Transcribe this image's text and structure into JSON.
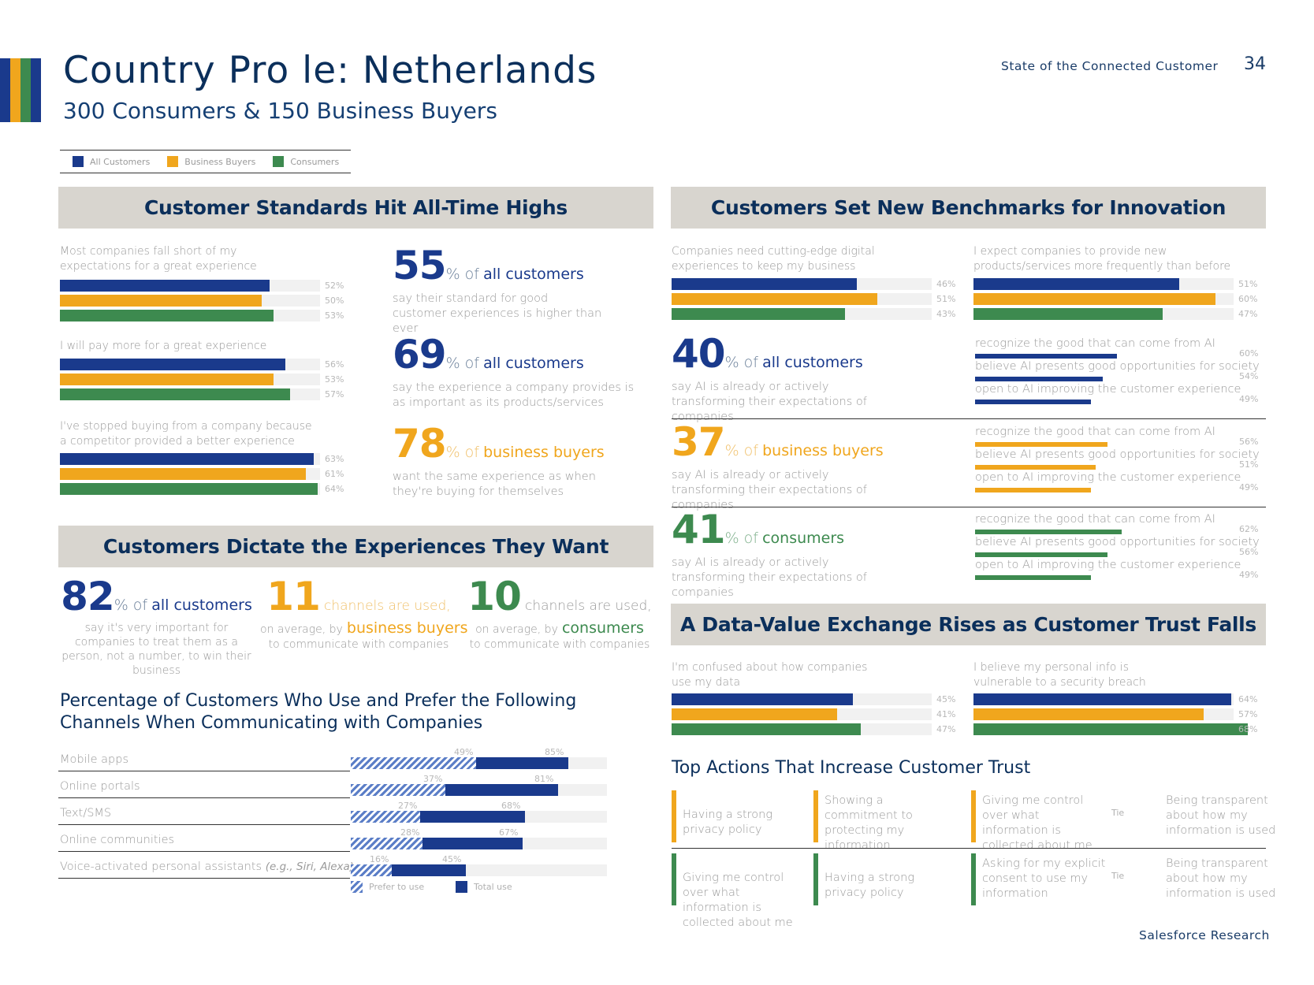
{
  "colors": {
    "all": "#1a3a8c",
    "business": "#f0a61d",
    "consumers": "#3d8a4f",
    "track": "#f1f1f1",
    "header_bg": "#d8d5cf"
  },
  "header": {
    "title": "Country Pro  le: Netherlands",
    "subtitle": "300 Consumers & 150 Business Buyers",
    "report_name": "State of the Connected Customer",
    "page_number": "34"
  },
  "legend": {
    "all": "All Customers",
    "business": "Business Buyers",
    "consumers": "Consumers"
  },
  "standards": {
    "title": "Customer Standards Hit All-Time Highs",
    "questions": [
      {
        "label": "Most companies fall short of my expectations for a great experience",
        "values": [
          52,
          50,
          53
        ],
        "labels": [
          "52%",
          "50%",
          "53%"
        ]
      },
      {
        "label": "I will pay more for a great experience",
        "values": [
          56,
          53,
          57
        ],
        "labels": [
          "56%",
          "53%",
          "57%"
        ]
      },
      {
        "label": "I've stopped buying from a company because a competitor provided a better experience",
        "values": [
          63,
          61,
          64
        ],
        "labels": [
          "63%",
          "61%",
          "64%"
        ]
      }
    ],
    "stats": [
      {
        "num": "55",
        "pct": "% of",
        "audience": "all customers",
        "desc": "say their standard for good customer experiences is higher than ever"
      },
      {
        "num": "69",
        "pct": "% of",
        "audience": "all customers",
        "desc": "say the experience a company provides is as important as its products/services"
      },
      {
        "num": "78",
        "pct": "% of",
        "audience": "business buyers",
        "desc": "want the same experience as when they're buying for themselves"
      }
    ]
  },
  "dictate": {
    "title": "Customers Dictate the Experiences They Want",
    "stat1": {
      "num": "82",
      "pct": "% of",
      "audience": "all customers",
      "desc": "say it's very important for companies to treat them as a person, not a number, to win their business"
    },
    "stat2": {
      "num": "11",
      "channels": "channels are used,",
      "prefix": "on average, by",
      "audience": "business buyers",
      "desc": "to communicate with companies"
    },
    "stat3": {
      "num": "10",
      "channels": "channels are used,",
      "prefix": "on average, by",
      "audience": "consumers",
      "desc": "to communicate with companies"
    }
  },
  "channels": {
    "title_line1": "Percentage of Customers Who Use and Prefer the Following",
    "title_line2": "Channels When Communicating with Companies",
    "rows": [
      {
        "label": "Mobile apps",
        "label_note": "",
        "prefer": 49,
        "total": 85,
        "prefer_label": "49%",
        "total_label": "85%"
      },
      {
        "label": "Online portals",
        "label_note": "",
        "prefer": 37,
        "total": 81,
        "prefer_label": "37%",
        "total_label": "81%"
      },
      {
        "label": "Text/SMS",
        "label_note": "",
        "prefer": 27,
        "total": 68,
        "prefer_label": "27%",
        "total_label": "68%"
      },
      {
        "label": "Online communities",
        "label_note": "",
        "prefer": 28,
        "total": 67,
        "prefer_label": "28%",
        "total_label": "67%"
      },
      {
        "label": "Voice-activated personal assistants",
        "label_note": "(e.g., Siri, Alexa)",
        "prefer": 16,
        "total": 45,
        "prefer_label": "16%",
        "total_label": "45%"
      }
    ],
    "legend_prefer": "Prefer to use",
    "legend_total": "Total use"
  },
  "innovation": {
    "title": "Customers Set New Benchmarks for Innovation",
    "q1": {
      "label": "Companies need cutting-edge digital experiences to keep my business",
      "values": [
        46,
        51,
        43
      ],
      "labels": [
        "46%",
        "51%",
        "43%"
      ]
    },
    "q2": {
      "label": "I expect companies to provide new products/services more frequently than before",
      "values": [
        51,
        60,
        47
      ],
      "labels": [
        "51%",
        "60%",
        "47%"
      ]
    },
    "ai_groups": [
      {
        "num": "40",
        "pct": "% of",
        "audience": "all customers",
        "desc": "say AI is already or actively transforming their expectations of companies",
        "items": [
          "recognize the good that can come from AI",
          "believe AI presents good opportunities for society",
          "open to AI improving the customer experience"
        ],
        "values": [
          60,
          54,
          49
        ],
        "labels": [
          "60%",
          "54%",
          "49%"
        ]
      },
      {
        "num": "37",
        "pct": "% of",
        "audience": "business buyers",
        "desc": "say AI is already or actively transforming their expectations of companies",
        "items": [
          "recognize the good that can come from AI",
          "believe AI presents good opportunities for society",
          "open to AI improving the customer experience"
        ],
        "values": [
          56,
          51,
          49
        ],
        "labels": [
          "56%",
          "51%",
          "49%"
        ]
      },
      {
        "num": "41",
        "pct": "% of",
        "audience": "consumers",
        "desc": "say AI is already or actively transforming their expectations of companies",
        "items": [
          "recognize the good that can come from AI",
          "believe AI presents good opportunities for society",
          "open to AI improving the customer experience"
        ],
        "values": [
          62,
          56,
          49
        ],
        "labels": [
          "62%",
          "56%",
          "49%"
        ]
      }
    ]
  },
  "trust": {
    "title": "A Data-Value Exchange Rises as Customer Trust Falls",
    "q1": {
      "label": "I'm confused about how companies use my data",
      "values": [
        45,
        41,
        47
      ],
      "labels": [
        "45%",
        "41%",
        "47%"
      ]
    },
    "q2": {
      "label": "I believe my personal info is vulnerable to a security breach",
      "values": [
        64,
        57,
        68
      ],
      "labels": [
        "64%",
        "57%",
        "68%"
      ]
    },
    "actions_title": "Top Actions That Increase Customer Trust",
    "tie_label": "Tie",
    "business_row": [
      "Having a strong privacy policy",
      "Showing a commitment to protecting my information",
      "Giving me control over what information is collected about me",
      "Being transparent about how my information is used"
    ],
    "consumer_row": [
      "Giving me control over what information is collected about me",
      "Having a strong privacy policy",
      "Asking for my explicit consent to use my information",
      "Being transparent about how my information is used"
    ]
  },
  "footer": {
    "brand": "Salesforce Research"
  }
}
